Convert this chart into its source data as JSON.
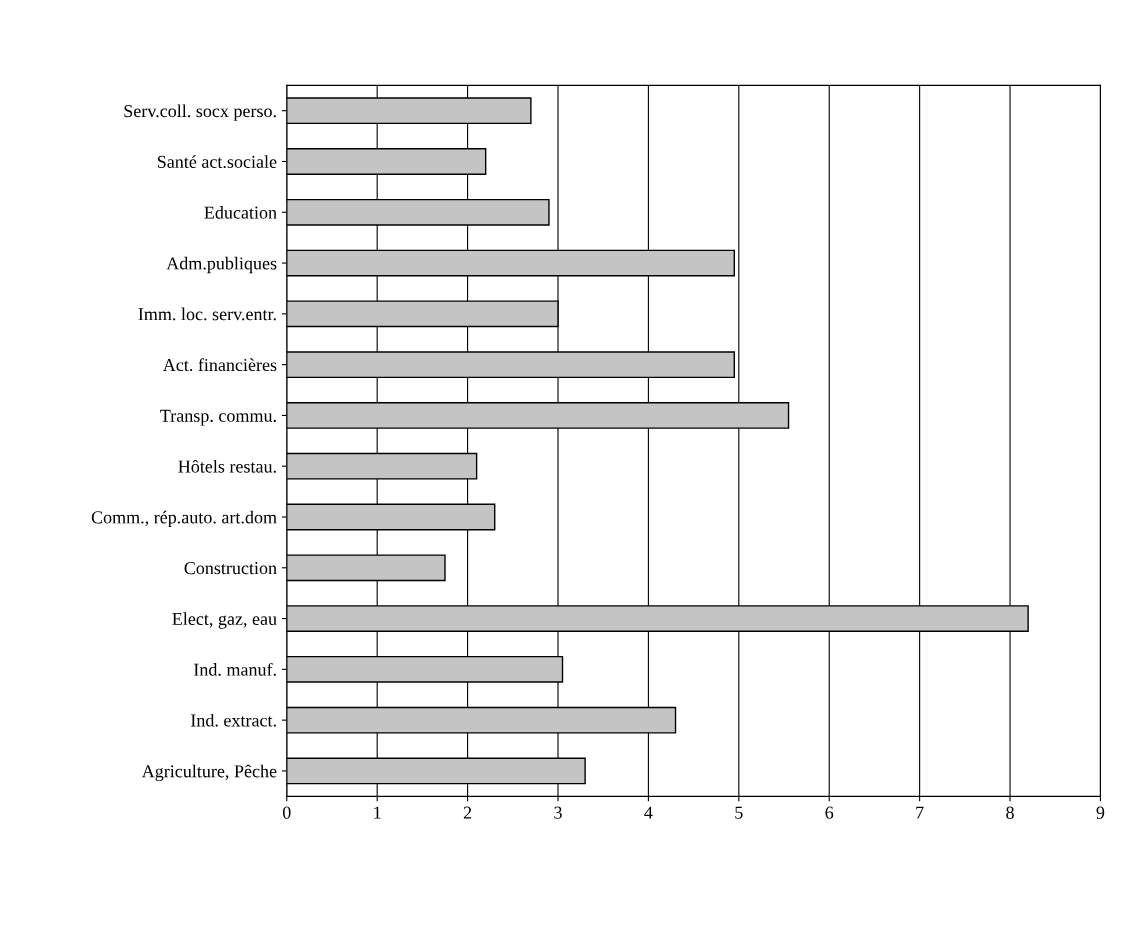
{
  "chart_data": {
    "type": "bar",
    "orientation": "horizontal",
    "categories": [
      "Serv.coll. socx perso.",
      "Santé act.sociale",
      "Education",
      "Adm.publiques",
      "Imm. loc. serv.entr.",
      "Act. financières",
      "Transp. commu.",
      "Hôtels restau.",
      "Comm., rép.auto. art.dom",
      "Construction",
      "Elect, gaz, eau",
      "Ind. manuf.",
      "Ind. extract.",
      "Agriculture, Pêche"
    ],
    "values": [
      2.7,
      2.2,
      2.9,
      4.95,
      3.0,
      4.95,
      5.55,
      2.1,
      2.3,
      1.75,
      8.2,
      3.05,
      4.3,
      3.3
    ],
    "color": "#c4c4c4",
    "xlim": [
      0,
      9
    ],
    "xticks": [
      0,
      1,
      2,
      3,
      4,
      5,
      6,
      7,
      8,
      9
    ],
    "grid": "x"
  }
}
